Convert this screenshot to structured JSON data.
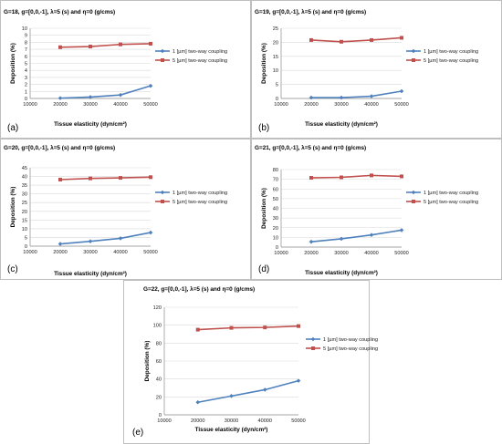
{
  "colors": {
    "s1": "#4f81bd",
    "s2": "#c0504d"
  },
  "chart_data": [
    {
      "type": "line",
      "panel_label": "(a)",
      "title": "G=18, g=[0,0,-1],  λ=5 (s) and η=0 (g/cms)",
      "xlabel": "Tissue elasticity (dyn/cm²)",
      "ylabel": "Deposition (%)",
      "x": [
        20000,
        30000,
        40000,
        50000
      ],
      "xlim": [
        10000,
        50000
      ],
      "ylim": [
        0,
        10
      ],
      "yticks": [
        0,
        1,
        2,
        3,
        4,
        5,
        6,
        7,
        8,
        9,
        10
      ],
      "series": [
        {
          "name": "1 [µm] two-way coupling",
          "values": [
            0.05,
            0.2,
            0.5,
            1.8
          ]
        },
        {
          "name": "5 [µm] two-way coupling",
          "values": [
            7.3,
            7.4,
            7.7,
            7.8
          ]
        }
      ]
    },
    {
      "type": "line",
      "panel_label": "(b)",
      "title": "G=19, g=[0,0,-1],  λ=5 (s) and η=0 (g/cms)",
      "xlabel": "Tissue elasticity (dyn/cm²)",
      "ylabel": "Deposition (%)",
      "x": [
        20000,
        30000,
        40000,
        50000
      ],
      "xlim": [
        10000,
        50000
      ],
      "ylim": [
        0,
        25
      ],
      "yticks": [
        0,
        5,
        10,
        15,
        20,
        25
      ],
      "series": [
        {
          "name": "1 [µm] two-way coupling",
          "values": [
            0.3,
            0.3,
            0.8,
            2.6
          ]
        },
        {
          "name": "5 [µm] two-way coupling",
          "values": [
            20.8,
            20.2,
            20.8,
            21.6
          ]
        }
      ]
    },
    {
      "type": "line",
      "panel_label": "(c)",
      "title": "G=20, g=[0,0,-1],  λ=5 (s) and η=0 (g/cms)",
      "xlabel": "Tissue elasticity (dyn/cm²)",
      "ylabel": "Deposition (%)",
      "x": [
        20000,
        30000,
        40000,
        50000
      ],
      "xlim": [
        10000,
        50000
      ],
      "ylim": [
        0,
        45
      ],
      "yticks": [
        0,
        5,
        10,
        15,
        20,
        25,
        30,
        35,
        40,
        45
      ],
      "series": [
        {
          "name": "1 [µm] two-way coupling",
          "values": [
            1.3,
            2.8,
            4.5,
            7.8
          ]
        },
        {
          "name": "5 [µm] two-way coupling",
          "values": [
            38.2,
            38.9,
            39.2,
            39.6
          ]
        }
      ]
    },
    {
      "type": "line",
      "panel_label": "(d)",
      "title": "G=21, g=[0,0,-1],  λ=5 (s) and η=0 (g/cms)",
      "xlabel": "Tissue elasticity (dyn/cm²)",
      "ylabel": "Deposition (%)",
      "x": [
        20000,
        30000,
        40000,
        50000
      ],
      "xlim": [
        10000,
        50000
      ],
      "ylim": [
        0,
        80
      ],
      "yticks": [
        0,
        10,
        20,
        30,
        40,
        50,
        60,
        70,
        80
      ],
      "series": [
        {
          "name": "1 [µm] two-way coupling",
          "values": [
            5.5,
            8.5,
            12.5,
            17.5
          ]
        },
        {
          "name": "5 [µm] two-way coupling",
          "values": [
            71.5,
            72.0,
            74.0,
            73.0
          ]
        }
      ]
    },
    {
      "type": "line",
      "panel_label": "(e)",
      "title": "G=22, g=[0,0,-1],  λ=5 (s) and η=0 (g/cms)",
      "xlabel": "Tissue elasticity (dyn/cm²)",
      "ylabel": "Deposition (%)",
      "x": [
        20000,
        30000,
        40000,
        50000
      ],
      "xlim": [
        10000,
        50000
      ],
      "ylim": [
        0,
        120
      ],
      "yticks": [
        0,
        20,
        40,
        60,
        80,
        100,
        120
      ],
      "series": [
        {
          "name": "1 [µm] two-way coupling",
          "values": [
            14,
            21,
            28,
            38
          ]
        },
        {
          "name": "5 [µm] two-way coupling",
          "values": [
            95,
            97,
            97.5,
            99
          ]
        }
      ]
    }
  ]
}
